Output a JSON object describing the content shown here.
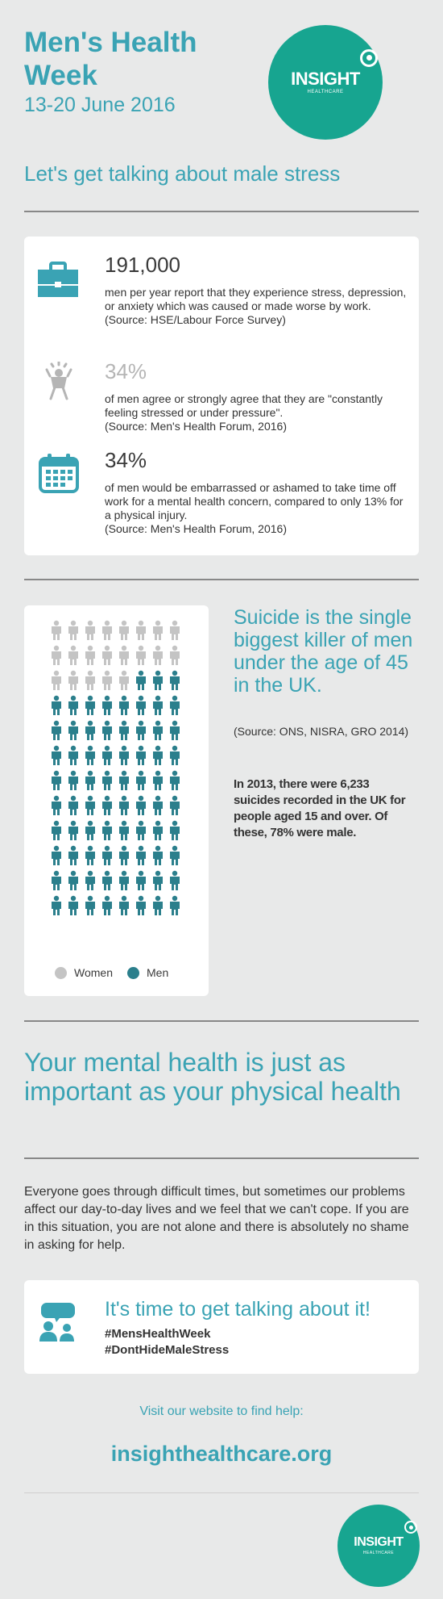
{
  "header": {
    "title_line1": "Men's Health",
    "title_line2": "Week",
    "dates": "13-20 June 2016",
    "logo_name": "INSIGHT",
    "logo_sub": "HEALTHCARE"
  },
  "subtitle": "Let's get talking about male stress",
  "stats": [
    {
      "number": "191,000",
      "text": "men per year report that they experience stress, depression, or anxiety which was caused or made worse by work.",
      "source": "(Source: HSE/Labour Force Survey)",
      "icon": "briefcase-icon",
      "number_color": "#3aa3b4"
    },
    {
      "number": "34%",
      "text": "of men agree or strongly agree that they are \"constantly feeling stressed or under pressure\".",
      "source": "(Source: Men's Health Forum, 2016)",
      "icon": "stressed-person-icon",
      "number_color": "#b5b5b5"
    },
    {
      "number": "34%",
      "text": "of men would be embarrassed or ashamed to take time off work for a mental health concern, compared to only 13% for a physical injury.",
      "source": "(Source: Men's Health Forum, 2016)",
      "icon": "calendar-icon",
      "number_color": "#3aa3b4"
    }
  ],
  "suicide": {
    "headline": "Suicide is the single biggest killer of men under the age of 45 in the UK.",
    "source": "(Source: ONS, NISRA, GRO 2014)",
    "body": "In 2013, there were 6,233 suicides recorded in the UK for people aged 15 and over. Of these, 78% were male."
  },
  "pictogram": {
    "women_count": 21,
    "men_count": 75,
    "legend_women": "Women",
    "legend_men": "Men",
    "women_color": "#c4c4c4",
    "men_color": "#2b7f8c"
  },
  "mental_health": {
    "headline": "Your mental health is just as important as your physical health",
    "body": "Everyone goes through difficult times, but sometimes our problems affect our day-to-day lives and we feel that we can't cope. If you are in this situation, you are not alone and there is absolutely no shame in asking for help."
  },
  "talk": {
    "headline": "It's time to get talking about it!",
    "tag1": "#MensHealthWeek",
    "tag2": "#DontHideMaleStress",
    "icon": "conversation-icon"
  },
  "footer": {
    "visit": "Visit our website to find help:",
    "website": "insighthealthcare.org"
  },
  "colors": {
    "teal": "#3aa3b4",
    "logo_green": "#17a590",
    "background": "#e8e9e9"
  }
}
